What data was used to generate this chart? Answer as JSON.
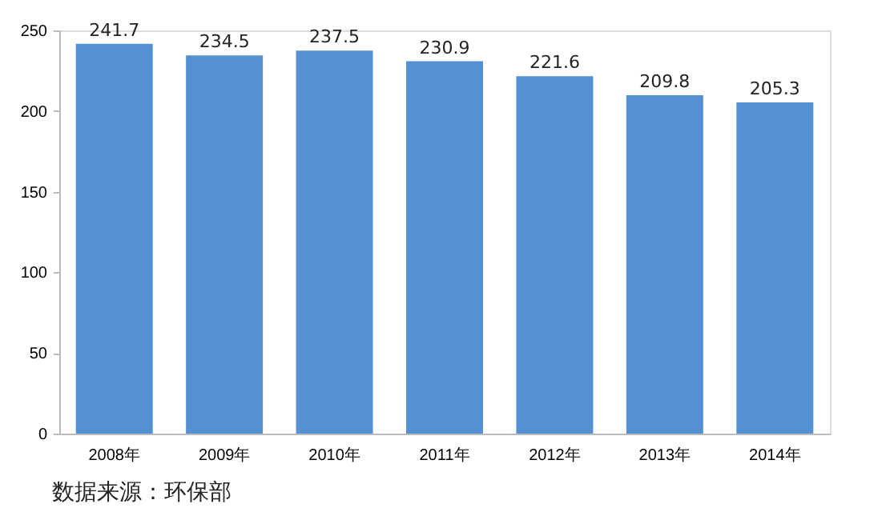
{
  "chart_data": {
    "type": "bar",
    "categories": [
      "2008年",
      "2009年",
      "2010年",
      "2011年",
      "2012年",
      "2013年",
      "2014年"
    ],
    "values": [
      241.7,
      234.5,
      237.5,
      230.9,
      221.6,
      209.8,
      205.3
    ],
    "color": "#5591d2",
    "ylim": [
      0,
      250
    ],
    "yticks": [
      0,
      50,
      100,
      150,
      200,
      250
    ],
    "data_labels": true,
    "grid": false,
    "annotations": [
      "数据来源：环保部"
    ]
  }
}
